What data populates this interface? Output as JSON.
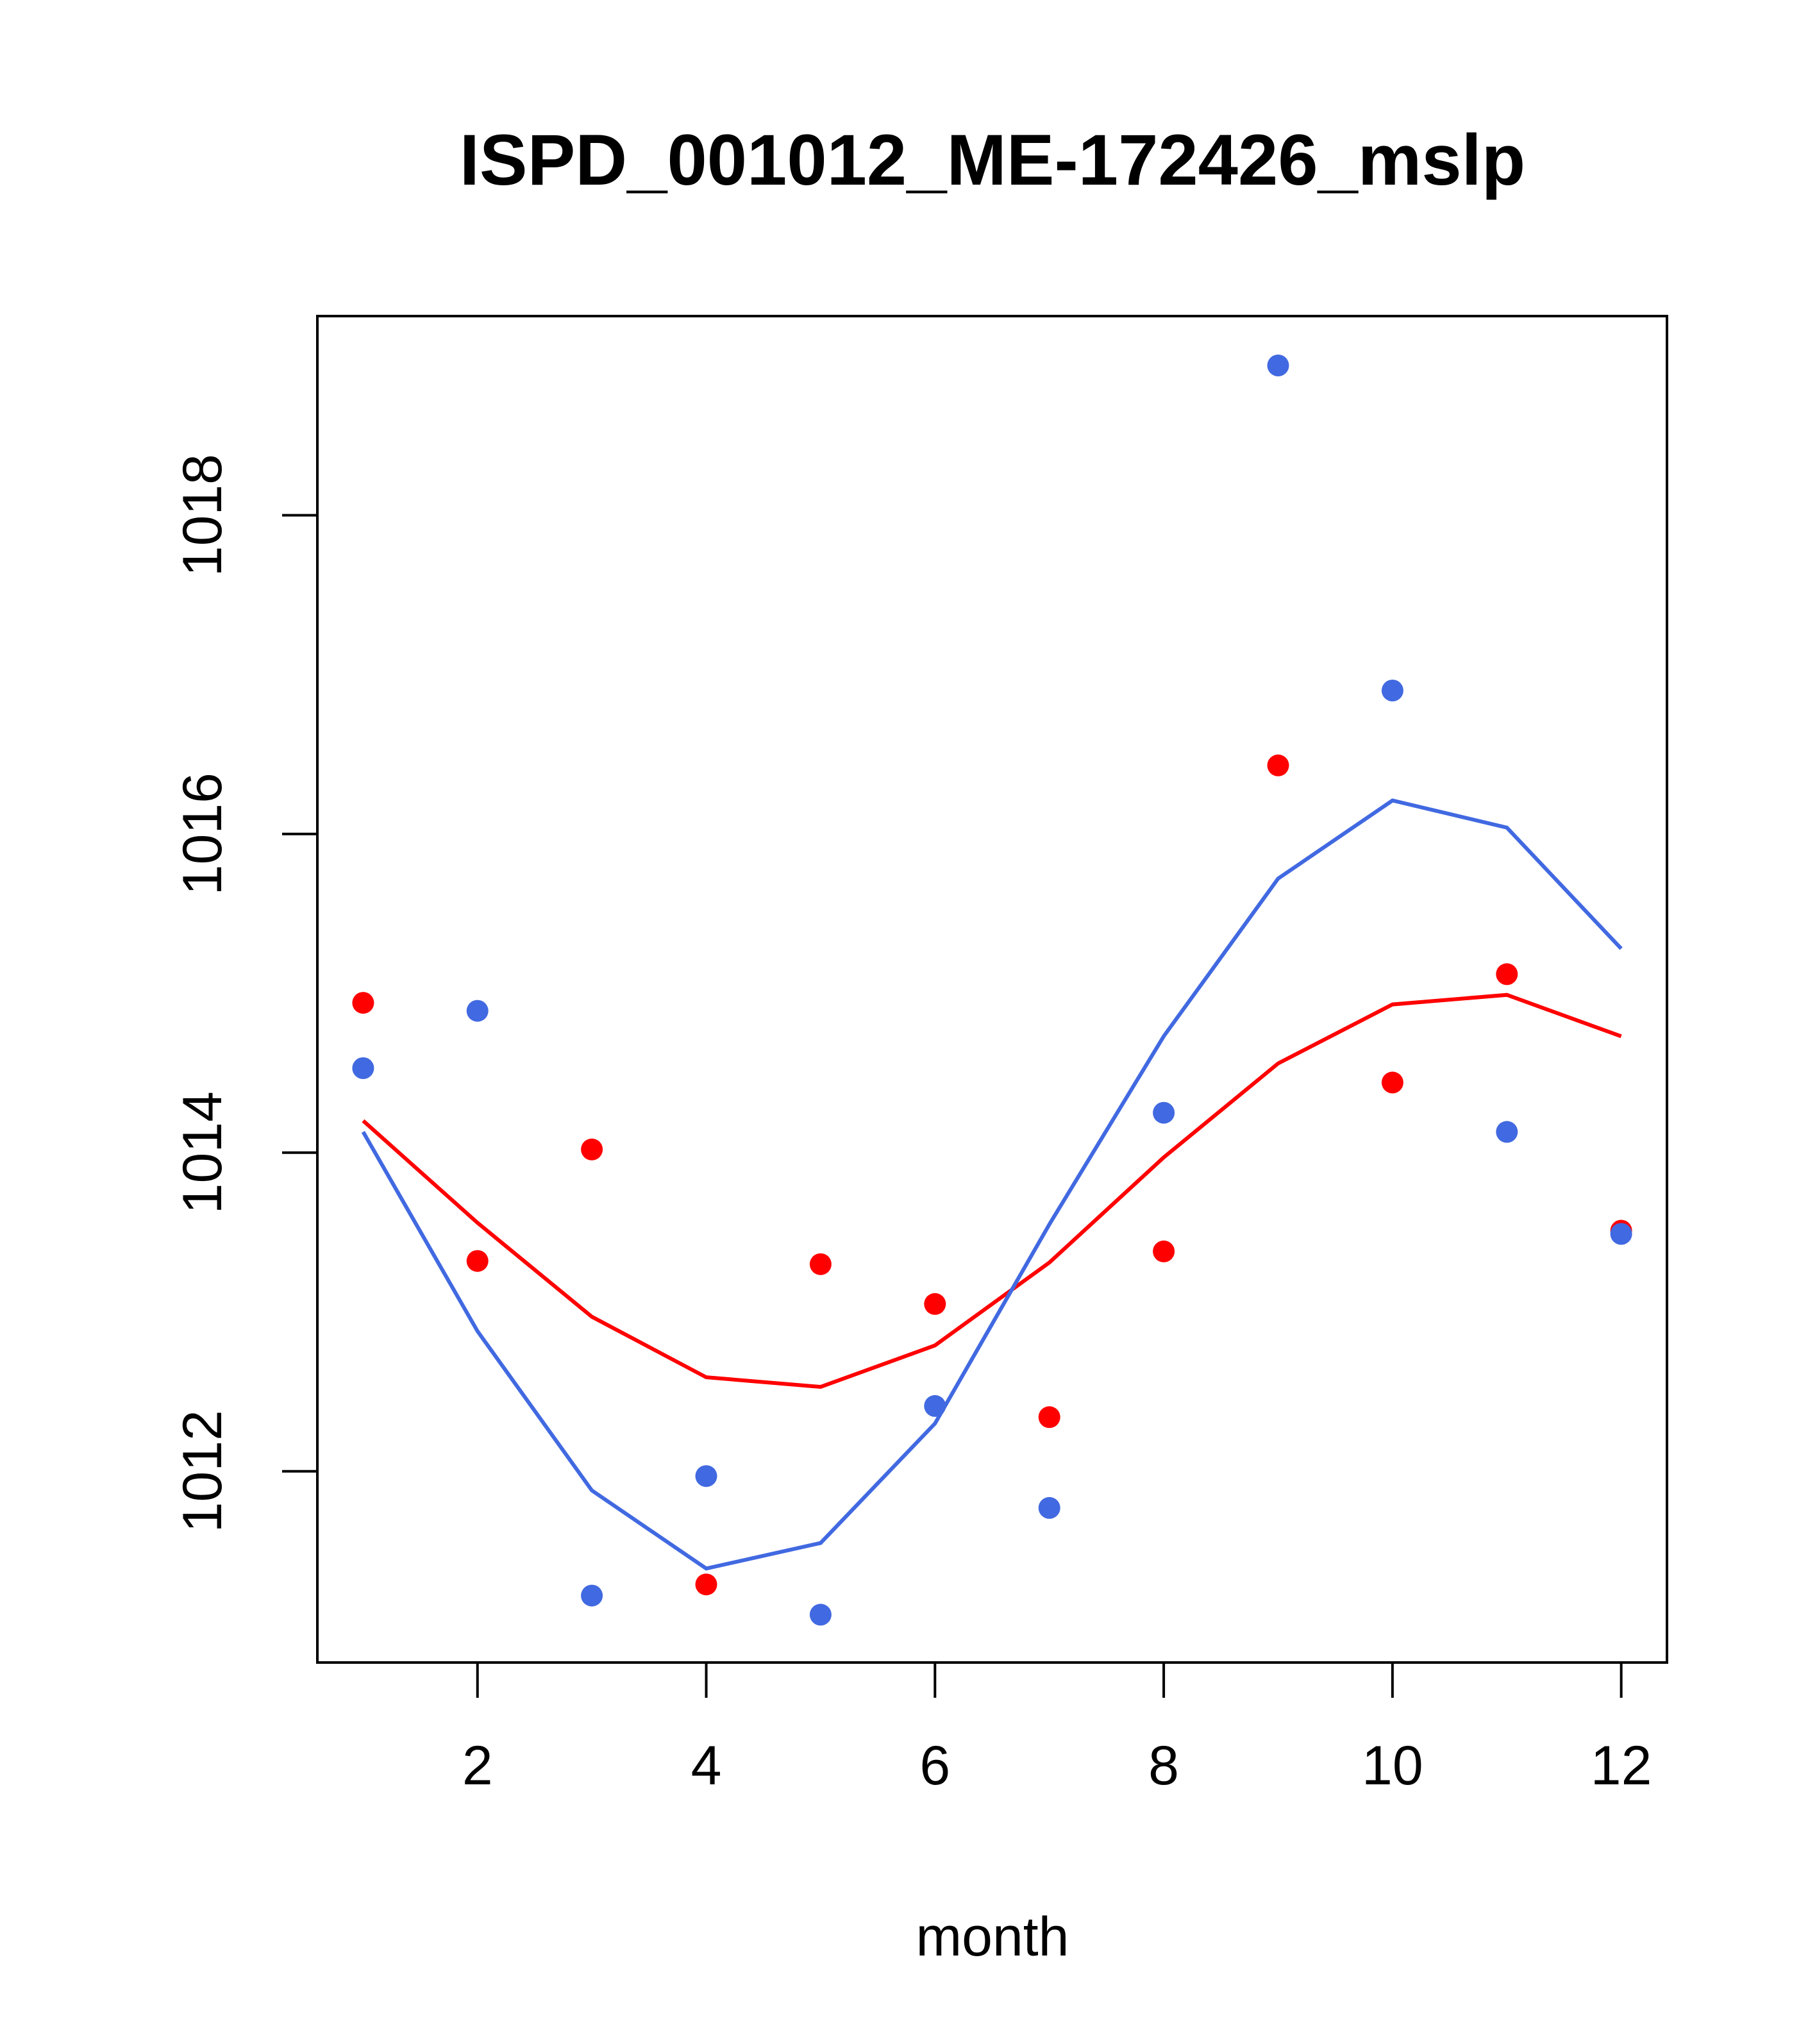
{
  "chart_data": {
    "type": "scatter",
    "title": "ISPD_001012_ME-172426_mslp",
    "xlabel": "month",
    "ylabel": "",
    "xlim": [
      0.6,
      12.4
    ],
    "ylim": [
      1010.8,
      1019.25
    ],
    "x_ticks": [
      2,
      4,
      6,
      8,
      10,
      12
    ],
    "y_ticks": [
      1012,
      1014,
      1016,
      1018
    ],
    "grid": false,
    "legend": "none",
    "series": [
      {
        "name": "red points",
        "kind": "points",
        "color": "#ff0000",
        "x": [
          1,
          2,
          3,
          4,
          5,
          6,
          7,
          8,
          9,
          10,
          11,
          12
        ],
        "values": [
          1014.94,
          1013.32,
          1014.02,
          1011.29,
          1013.3,
          1013.05,
          1012.34,
          1013.38,
          1016.43,
          1014.44,
          1015.12,
          1013.51
        ]
      },
      {
        "name": "blue points",
        "kind": "points",
        "color": "#4169e1",
        "x": [
          1,
          2,
          3,
          4,
          5,
          6,
          7,
          8,
          9,
          10,
          11,
          12
        ],
        "values": [
          1014.53,
          1014.89,
          1011.22,
          1011.97,
          1011.1,
          1012.41,
          1011.77,
          1014.25,
          1018.94,
          1016.9,
          1014.13,
          1013.49
        ]
      },
      {
        "name": "red smooth",
        "kind": "line",
        "color": "#ff0000",
        "x": [
          1,
          2,
          3,
          4,
          5,
          6,
          7,
          8,
          9,
          10,
          11,
          12
        ],
        "values": [
          1014.2,
          1013.56,
          1012.97,
          1012.59,
          1012.53,
          1012.79,
          1013.31,
          1013.97,
          1014.56,
          1014.93,
          1014.99,
          1014.73
        ]
      },
      {
        "name": "blue smooth",
        "kind": "line",
        "color": "#4169e1",
        "x": [
          1,
          2,
          3,
          4,
          5,
          6,
          7,
          8,
          9,
          10,
          11,
          12
        ],
        "values": [
          1014.13,
          1012.88,
          1011.88,
          1011.39,
          1011.55,
          1012.3,
          1013.55,
          1014.73,
          1015.72,
          1016.21,
          1016.04,
          1015.28
        ]
      }
    ]
  }
}
